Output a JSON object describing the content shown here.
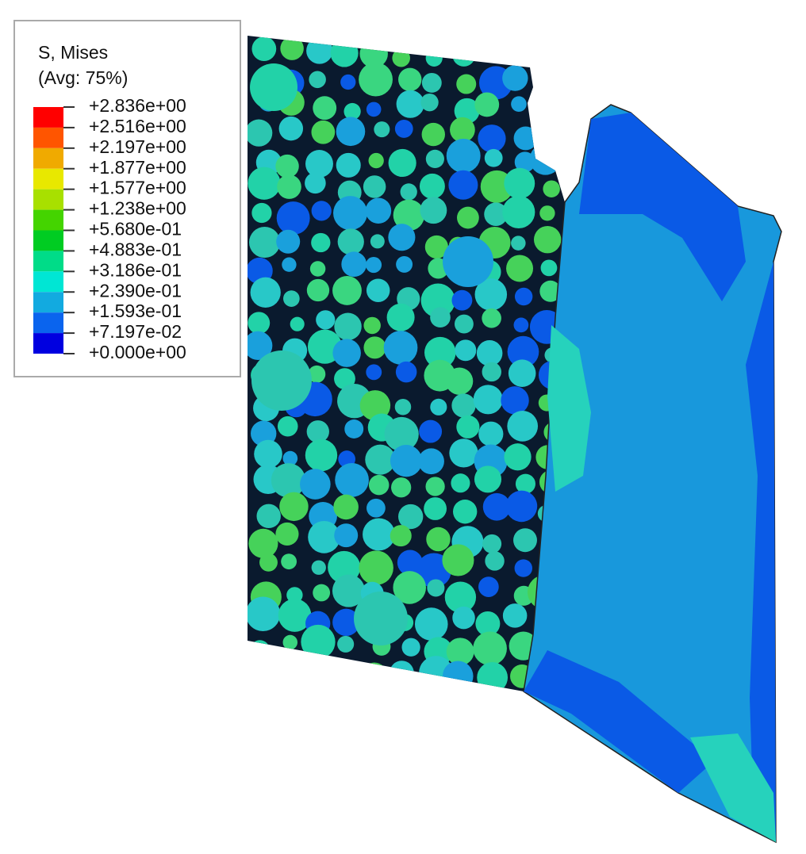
{
  "legend": {
    "title": "S, Mises",
    "subtitle": "(Avg: 75%)",
    "levels": [
      "+2.836e+00",
      "+2.516e+00",
      "+2.197e+00",
      "+1.877e+00",
      "+1.577e+00",
      "+1.238e+00",
      "+5.680e-01",
      "+4.883e-01",
      "+3.186e-01",
      "+2.390e-01",
      "+1.593e-01",
      "+7.197e-02",
      "+0.000e+00"
    ],
    "colors": [
      "#ff0000",
      "#ff5500",
      "#f0aa00",
      "#e8e800",
      "#a8e000",
      "#44d400",
      "#00cc22",
      "#00dc88",
      "#00e6d4",
      "#12aae0",
      "#0a64ee",
      "#0000e0"
    ]
  }
}
